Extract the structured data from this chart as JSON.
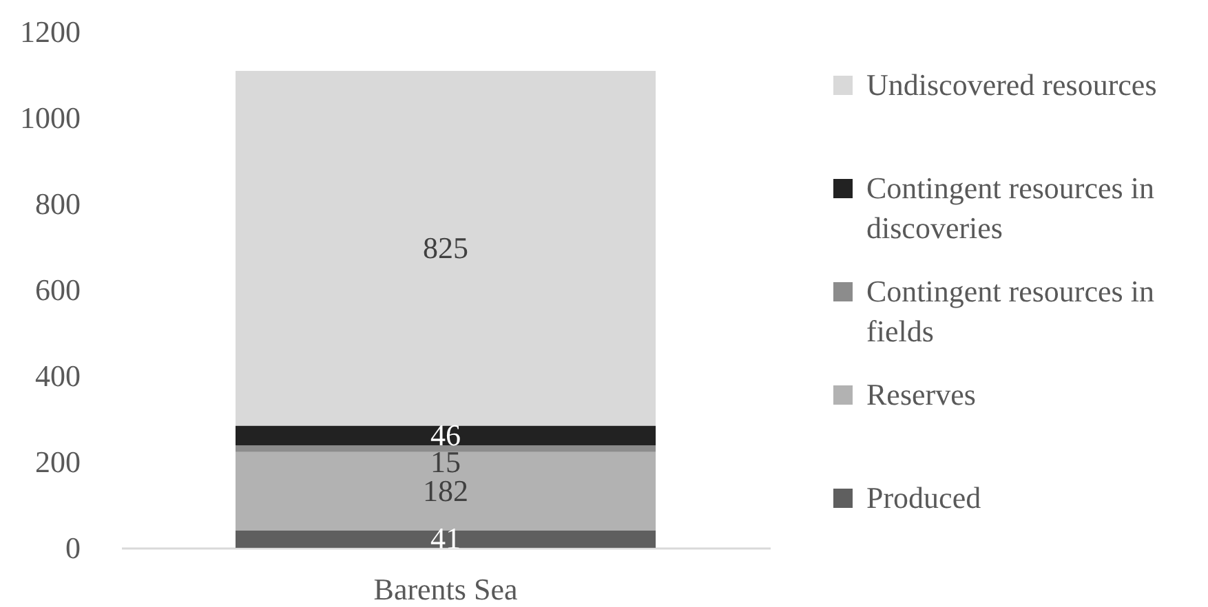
{
  "chart_data": {
    "type": "bar",
    "categories": [
      "Barents Sea"
    ],
    "stacked": true,
    "series": [
      {
        "name": "Produced",
        "color": "#5f5f5f",
        "values": [
          41
        ]
      },
      {
        "name": "Reserves",
        "color": "#b2b2b2",
        "values": [
          182
        ]
      },
      {
        "name": "Contingent resources in fields",
        "color": "#8c8c8c",
        "values": [
          15
        ]
      },
      {
        "name": "Contingent resources in discoveries",
        "color": "#222222",
        "values": [
          46
        ]
      },
      {
        "name": "Undiscovered resources",
        "color": "#d9d9d9",
        "values": [
          825
        ]
      }
    ],
    "ylim": [
      0,
      1200
    ],
    "yticks": [
      0,
      200,
      400,
      600,
      800,
      1000,
      1200
    ],
    "data_labels": true,
    "legend": "right"
  }
}
